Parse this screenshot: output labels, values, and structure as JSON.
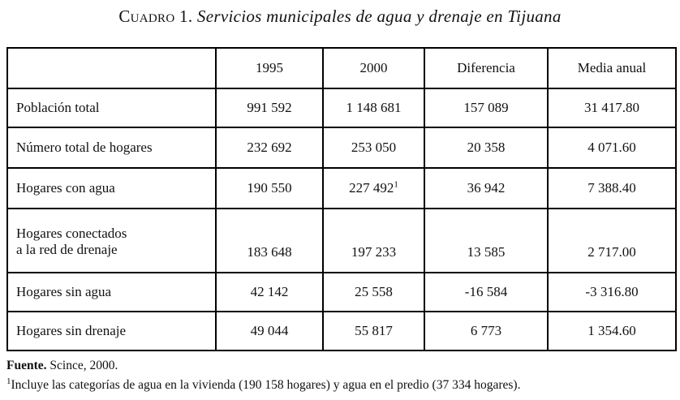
{
  "title": {
    "prefix": "Cuadro 1.",
    "rest": " Servicios municipales de agua y drenaje en Tijuana"
  },
  "table": {
    "headers": [
      "",
      "1995",
      "2000",
      "Diferencia",
      "Media anual"
    ],
    "superscript_marker": "1",
    "rows": [
      {
        "cells": [
          "Población total",
          "991 592",
          "1 148 681",
          "157 089",
          "31 417.80"
        ]
      },
      {
        "cells": [
          "Número total de hogares",
          "232 692",
          "253 050",
          "20 358",
          "4 071.60"
        ]
      },
      {
        "cells": [
          "Hogares con agua",
          "190 550",
          "227 492",
          "36 942",
          "7 388.40"
        ]
      },
      {
        "cells": [
          "Hogares conectados\na la red de drenaje",
          "183 648",
          "197 233",
          "13 585",
          "2 717.00"
        ]
      },
      {
        "cells": [
          "Hogares sin agua",
          "42 142",
          "25 558",
          "-16 584",
          "-3 316.80"
        ]
      },
      {
        "cells": [
          "Hogares sin drenaje",
          "49 044",
          "55 817",
          "6 773",
          "1 354.60"
        ]
      }
    ]
  },
  "notes": {
    "source_label": "Fuente.",
    "source_text": " Scince, 2000.",
    "footnote_marker": "1",
    "footnote_text": "Incluye las categorías de agua en la vivienda (190 158 hogares) y agua en el predio (37 334 hogares)."
  }
}
